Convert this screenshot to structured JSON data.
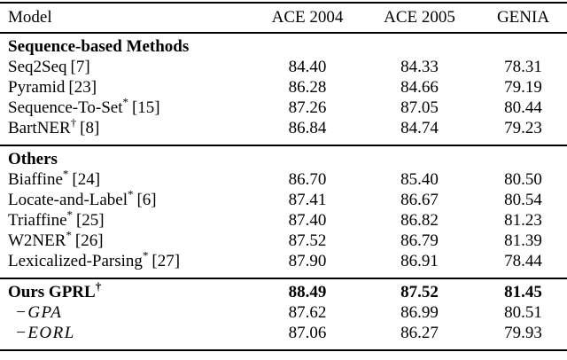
{
  "colors": {
    "background": "#ffffff",
    "text": "#000000",
    "rule": "#000000"
  },
  "table": {
    "columns": [
      "Model",
      "ACE 2004",
      "ACE 2005",
      "GENIA"
    ],
    "sections": [
      {
        "header": "Sequence-based Methods",
        "rows": [
          {
            "name": "Seq2Seq",
            "sup": "",
            "ref": "[7]",
            "values": [
              "84.40",
              "84.33",
              "78.31"
            ]
          },
          {
            "name": "Pyramid",
            "sup": "",
            "ref": "[23]",
            "values": [
              "86.28",
              "84.66",
              "79.19"
            ]
          },
          {
            "name": "Sequence-To-Set",
            "sup": "*",
            "ref": "[15]",
            "values": [
              "87.26",
              "87.05",
              "80.44"
            ]
          },
          {
            "name": "BartNER",
            "sup": "†",
            "ref": "[8]",
            "values": [
              "86.84",
              "84.74",
              "79.23"
            ]
          }
        ]
      },
      {
        "header": "Others",
        "rows": [
          {
            "name": "Biaffine",
            "sup": "*",
            "ref": "[24]",
            "values": [
              "86.70",
              "85.40",
              "80.50"
            ]
          },
          {
            "name": "Locate-and-Label",
            "sup": "*",
            "ref": "[6]",
            "values": [
              "87.41",
              "86.67",
              "80.54"
            ]
          },
          {
            "name": "Triaffine",
            "sup": "*",
            "ref": "[25]",
            "values": [
              "87.40",
              "86.82",
              "81.23"
            ]
          },
          {
            "name": "W2NER",
            "sup": "*",
            "ref": "[26]",
            "values": [
              "87.52",
              "86.79",
              "81.39"
            ]
          },
          {
            "name": "Lexicalized-Parsing",
            "sup": "*",
            "ref": "[27]",
            "values": [
              "87.90",
              "86.91",
              "78.44"
            ]
          }
        ]
      },
      {
        "header": "",
        "rows": [
          {
            "name": "Ours GPRL",
            "sup": "†",
            "ref": "",
            "values": [
              "88.49",
              "87.52",
              "81.45"
            ]
          },
          {
            "name": "−GPA",
            "sup": "",
            "ref": "",
            "values": [
              "87.62",
              "86.99",
              "80.51"
            ]
          },
          {
            "name": "−EORL",
            "sup": "",
            "ref": "",
            "values": [
              "87.06",
              "86.27",
              "79.93"
            ]
          }
        ]
      }
    ]
  }
}
